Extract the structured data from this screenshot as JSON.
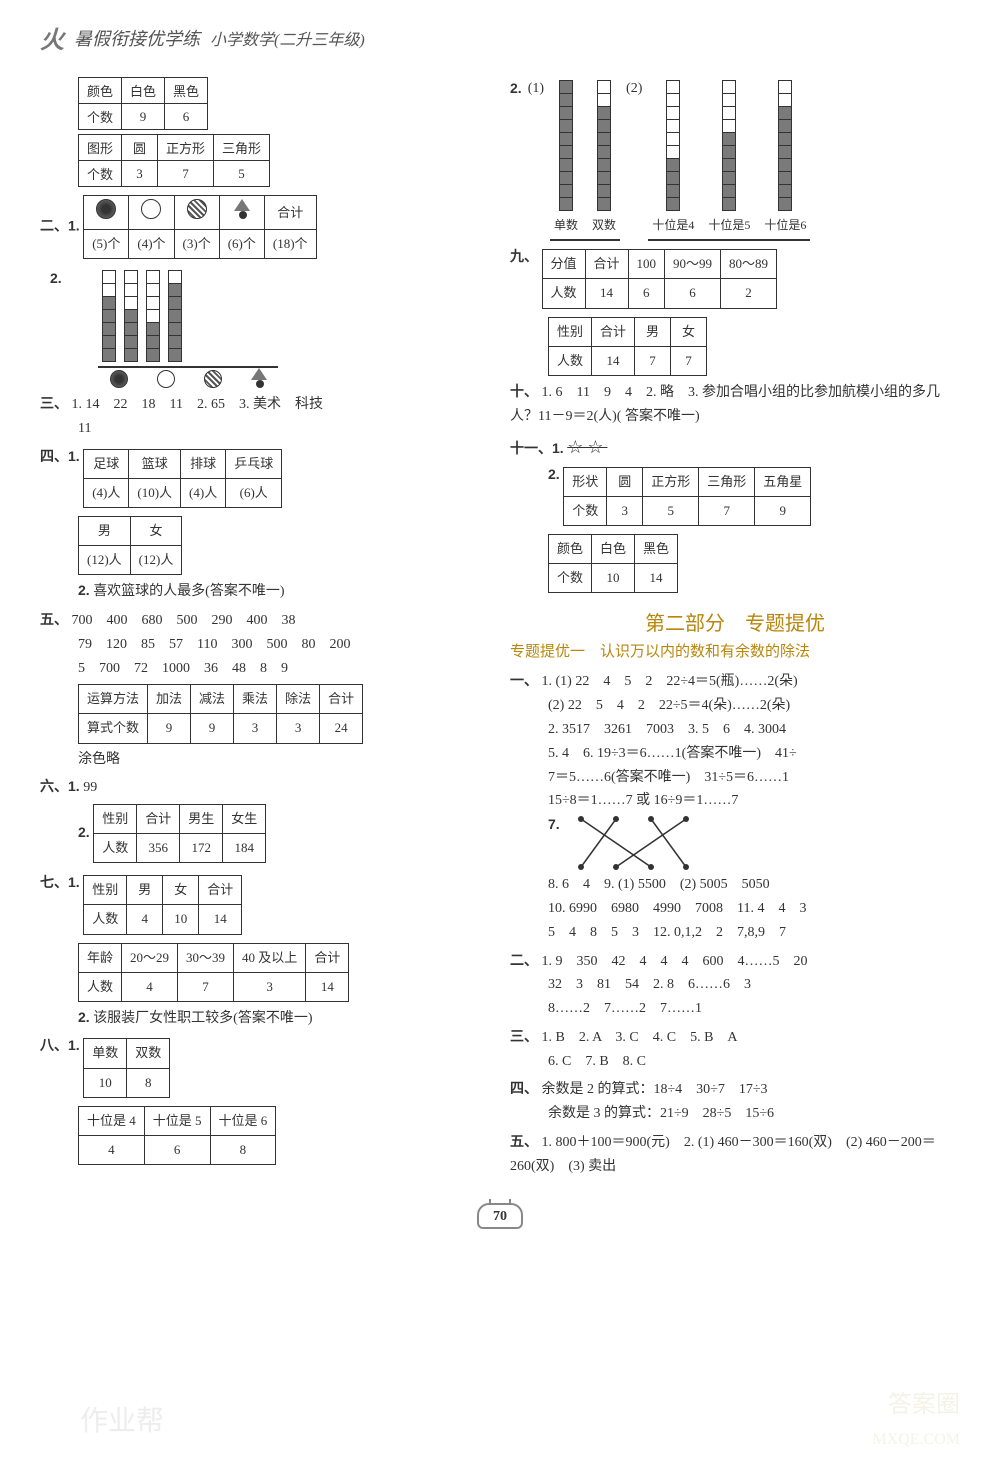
{
  "header": {
    "logo_glyph": "火",
    "title": "暑假衔接优学练",
    "subtitle": "小学数学(二升三年级)"
  },
  "left": {
    "t_color": {
      "headers": [
        "颜色",
        "白色",
        "黑色"
      ],
      "row_label": "个数",
      "values": [
        "9",
        "6"
      ]
    },
    "t_shape": {
      "headers": [
        "图形",
        "圆",
        "正方形",
        "三角形"
      ],
      "row_label": "个数",
      "values": [
        "3",
        "7",
        "5"
      ]
    },
    "sec2_1": {
      "label": "二、1.",
      "cols": [
        "(5)个",
        "(4)个",
        "(3)个",
        "(6)个",
        "(18)个"
      ],
      "last_header": "合计"
    },
    "sec2_2": {
      "label": "2.",
      "bars": [
        {
          "filled": 5,
          "empty": 2
        },
        {
          "filled": 4,
          "empty": 3
        },
        {
          "filled": 3,
          "empty": 4
        },
        {
          "filled": 6,
          "empty": 1
        }
      ]
    },
    "sec3": {
      "label": "三、",
      "text": "1. 14　22　18　11　2. 65　3. 美术　科技",
      "text2": "11"
    },
    "sec4_1": {
      "label": "四、1.",
      "t1": {
        "headers": [
          "足球",
          "篮球",
          "排球",
          "乒乓球"
        ],
        "values": [
          "(4)人",
          "(10)人",
          "(4)人",
          "(6)人"
        ]
      },
      "t2": {
        "headers": [
          "男",
          "女"
        ],
        "values": [
          "(12)人",
          "(12)人"
        ]
      }
    },
    "sec4_2": {
      "label": "2.",
      "text": "喜欢篮球的人最多(答案不唯一)"
    },
    "sec5": {
      "label": "五、",
      "line1": "700　400　680　500　290　400　38",
      "line2": "79　120　85　57　110　300　500　80　200",
      "line3": "5　700　72　1000　36　48　8　9",
      "table": {
        "headers": [
          "运算方法",
          "加法",
          "减法",
          "乘法",
          "除法",
          "合计"
        ],
        "row_label": "算式个数",
        "values": [
          "9",
          "9",
          "3",
          "3",
          "24"
        ]
      },
      "note": "涂色略"
    },
    "sec6": {
      "label": "六、1.",
      "text1": "99",
      "label2": "2.",
      "table": {
        "headers": [
          "性别",
          "合计",
          "男生",
          "女生"
        ],
        "row_label": "人数",
        "values": [
          "356",
          "172",
          "184"
        ]
      }
    },
    "sec7": {
      "label": "七、1.",
      "t1": {
        "headers": [
          "性别",
          "男",
          "女",
          "合计"
        ],
        "row_label": "人数",
        "values": [
          "4",
          "10",
          "14"
        ]
      },
      "t2": {
        "headers": [
          "年龄",
          "20～29",
          "30～39",
          "40 及以上",
          "合计"
        ],
        "row_label": "人数",
        "values": [
          "4",
          "7",
          "3",
          "14"
        ]
      },
      "note_label": "2.",
      "note": "该服装厂女性职工较多(答案不唯一)"
    },
    "sec8": {
      "label": "八、1.",
      "t1": {
        "headers": [
          "单数",
          "双数"
        ],
        "values": [
          "10",
          "8"
        ]
      },
      "t2": {
        "headers": [
          "十位是 4",
          "十位是 5",
          "十位是 6"
        ],
        "values": [
          "4",
          "6",
          "8"
        ]
      }
    }
  },
  "right": {
    "sec2r": {
      "label": "2.",
      "p1_label": "(1)",
      "p1_bars": [
        {
          "filled": 10,
          "empty": 0,
          "label": "单数"
        },
        {
          "filled": 8,
          "empty": 2,
          "label": "双数"
        }
      ],
      "p2_label": "(2)",
      "p2_bars": [
        {
          "filled": 4,
          "empty": 6,
          "label": "十位是4"
        },
        {
          "filled": 6,
          "empty": 4,
          "label": "十位是5"
        },
        {
          "filled": 8,
          "empty": 2,
          "label": "十位是6"
        }
      ]
    },
    "sec9": {
      "label": "九、",
      "t1": {
        "headers": [
          "分值",
          "合计",
          "100",
          "90～99",
          "80～89"
        ],
        "row_label": "人数",
        "values": [
          "14",
          "6",
          "6",
          "2"
        ]
      },
      "t2": {
        "headers": [
          "性别",
          "合计",
          "男",
          "女"
        ],
        "row_label": "人数",
        "values": [
          "14",
          "7",
          "7"
        ]
      }
    },
    "sec10": {
      "label": "十、",
      "line": "1. 6　11　9　4　2. 略　3. 参加合唱小组的比参加航模小组的多几人？11－9＝2(人)( 答案不唯一)"
    },
    "sec11": {
      "label": "十一、1.",
      "stars": "☆☆",
      "label2": "2.",
      "t1": {
        "headers": [
          "形状",
          "圆",
          "正方形",
          "三角形",
          "五角星"
        ],
        "row_label": "个数",
        "values": [
          "3",
          "5",
          "7",
          "9"
        ]
      },
      "t2": {
        "headers": [
          "颜色",
          "白色",
          "黑色"
        ],
        "row_label": "个数",
        "values": [
          "10",
          "14"
        ]
      }
    },
    "part2": {
      "title": "第二部分　专题提优",
      "subtitle": "专题提优一　认识万以内的数和有余数的除法"
    },
    "p2_sec1": {
      "label": "一、",
      "items": [
        "1. (1) 22　4　5　2　22÷4＝5(瓶)……2(朵)",
        "(2) 22　5　4　2　22÷5＝4(朵)……2(朵)",
        "2. 3517　3261　7003　3. 5　6　4. 3004",
        "5. 4　6. 19÷3＝6……1(答案不唯一)　41÷",
        "7＝5……6(答案不唯一)　31÷5＝6……1",
        "15÷8＝1……7 或 16÷9＝1……7"
      ],
      "q7_label": "7.",
      "items2": [
        "8. 6　4　9. (1) 5500　(2) 5005　5050",
        "10. 6990　6980　4990　7008　11. 4　4　3",
        "5　4　8　5　3　12. 0,1,2　2　7,8,9　7"
      ]
    },
    "p2_sec2": {
      "label": "二、",
      "lines": [
        "1. 9　350　42　4　4　4　600　4……5　20",
        "32　3　81　54　2. 8　6……6　3",
        "8……2　7……2　7……1"
      ]
    },
    "p2_sec3": {
      "label": "三、",
      "line1": "1. B　2. A　3. C　4. C　5. B　A",
      "line2": "6. C　7. B　8. C"
    },
    "p2_sec4": {
      "label": "四、",
      "line1": "余数是 2 的算式：18÷4　30÷7　17÷3",
      "line2": "余数是 3 的算式：21÷9　28÷5　15÷6"
    },
    "p2_sec5": {
      "label": "五、",
      "line": "1. 800＋100＝900(元)　2. (1) 460－300＝160(双)　(2) 460－200＝260(双)　(3) 卖出"
    }
  },
  "page_number": "70",
  "watermarks": {
    "left": "作业帮",
    "right_top": "答案圈",
    "right_bottom": "MXQE.COM"
  }
}
